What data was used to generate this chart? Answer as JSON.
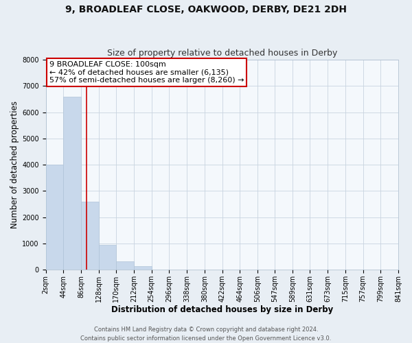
{
  "title1": "9, BROADLEAF CLOSE, OAKWOOD, DERBY, DE21 2DH",
  "title2": "Size of property relative to detached houses in Derby",
  "xlabel": "Distribution of detached houses by size in Derby",
  "ylabel": "Number of detached properties",
  "footer1": "Contains HM Land Registry data © Crown copyright and database right 2024.",
  "footer2": "Contains public sector information licensed under the Open Government Licence v3.0.",
  "bar_edges": [
    2,
    44,
    86,
    128,
    170,
    212,
    254,
    296,
    338,
    380,
    422,
    464,
    506,
    547,
    589,
    631,
    673,
    715,
    757,
    799,
    841
  ],
  "bar_heights": [
    4000,
    6600,
    2600,
    950,
    320,
    125,
    0,
    0,
    0,
    0,
    0,
    0,
    0,
    0,
    0,
    0,
    0,
    0,
    0,
    0
  ],
  "bar_color": "#c8d8eb",
  "bar_edgecolor": "#b0c4d8",
  "property_size": 100,
  "vline_color": "#cc0000",
  "annotation_line1": "9 BROADLEAF CLOSE: 100sqm",
  "annotation_line2": "← 42% of detached houses are smaller (6,135)",
  "annotation_line3": "57% of semi-detached houses are larger (8,260) →",
  "annotation_box_edgecolor": "#cc0000",
  "annotation_box_facecolor": "#ffffff",
  "ylim": [
    0,
    8000
  ],
  "yticks": [
    0,
    1000,
    2000,
    3000,
    4000,
    5000,
    6000,
    7000,
    8000
  ],
  "tick_labels": [
    "2sqm",
    "44sqm",
    "86sqm",
    "128sqm",
    "170sqm",
    "212sqm",
    "254sqm",
    "296sqm",
    "338sqm",
    "380sqm",
    "422sqm",
    "464sqm",
    "506sqm",
    "547sqm",
    "589sqm",
    "631sqm",
    "673sqm",
    "715sqm",
    "757sqm",
    "799sqm",
    "841sqm"
  ],
  "bg_color": "#e8eef4",
  "plot_bg_color": "#f4f8fc",
  "grid_color": "#c8d4e0",
  "title1_fontsize": 10,
  "title2_fontsize": 9,
  "axis_label_fontsize": 8.5,
  "tick_fontsize": 7,
  "annotation_fontsize": 8,
  "footer_fontsize": 6
}
